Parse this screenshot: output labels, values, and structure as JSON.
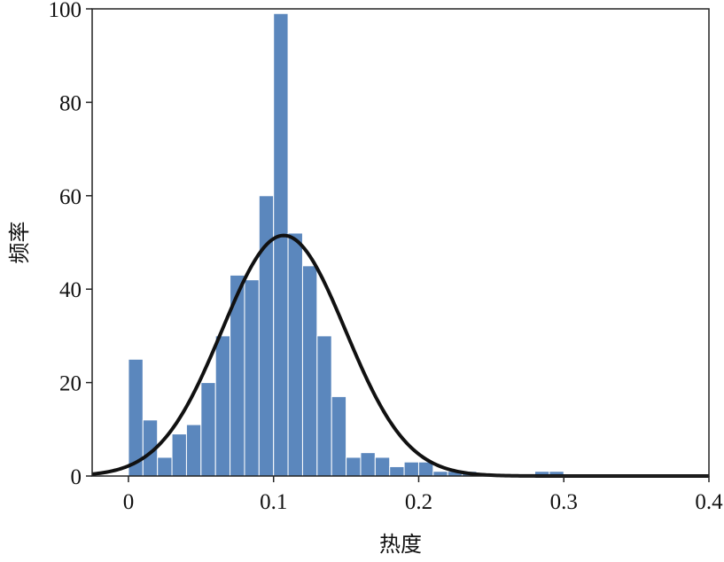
{
  "chart_data": {
    "type": "bar",
    "subtype": "histogram",
    "title": "",
    "xlabel": "热度",
    "ylabel": "频率",
    "xlim": [
      -0.025,
      0.4
    ],
    "ylim": [
      0,
      100
    ],
    "x_ticks": [
      {
        "value": 0,
        "label": "0"
      },
      {
        "value": 0.1,
        "label": "0.1"
      },
      {
        "value": 0.2,
        "label": "0.2"
      },
      {
        "value": 0.3,
        "label": "0.3"
      },
      {
        "value": 0.4,
        "label": "0.4"
      }
    ],
    "y_ticks": [
      {
        "value": 0,
        "label": "0"
      },
      {
        "value": 20,
        "label": "20"
      },
      {
        "value": 40,
        "label": "40"
      },
      {
        "value": 60,
        "label": "60"
      },
      {
        "value": 80,
        "label": "80"
      },
      {
        "value": 100,
        "label": "100"
      }
    ],
    "bin_width": 0.01,
    "bins_start": [
      0.0,
      0.01,
      0.02,
      0.03,
      0.04,
      0.05,
      0.06,
      0.07,
      0.08,
      0.09,
      0.1,
      0.11,
      0.12,
      0.13,
      0.14,
      0.15,
      0.16,
      0.17,
      0.18,
      0.19,
      0.2,
      0.21,
      0.22,
      0.23,
      0.24,
      0.25,
      0.26,
      0.27,
      0.28,
      0.29,
      0.3
    ],
    "counts": [
      25,
      12,
      4,
      9,
      11,
      20,
      30,
      43,
      42,
      60,
      99,
      52,
      45,
      30,
      17,
      4,
      5,
      4,
      2,
      3,
      3,
      1,
      1,
      1,
      0,
      0,
      0,
      0,
      1,
      1,
      0
    ],
    "fit_curve": {
      "type": "normal",
      "mean": 0.107,
      "std": 0.0425,
      "peak": 51.5
    },
    "grid": false,
    "bar_color": "#5b87bd",
    "bar_edge_color": "#ffffff",
    "curve_color": "#111111"
  }
}
